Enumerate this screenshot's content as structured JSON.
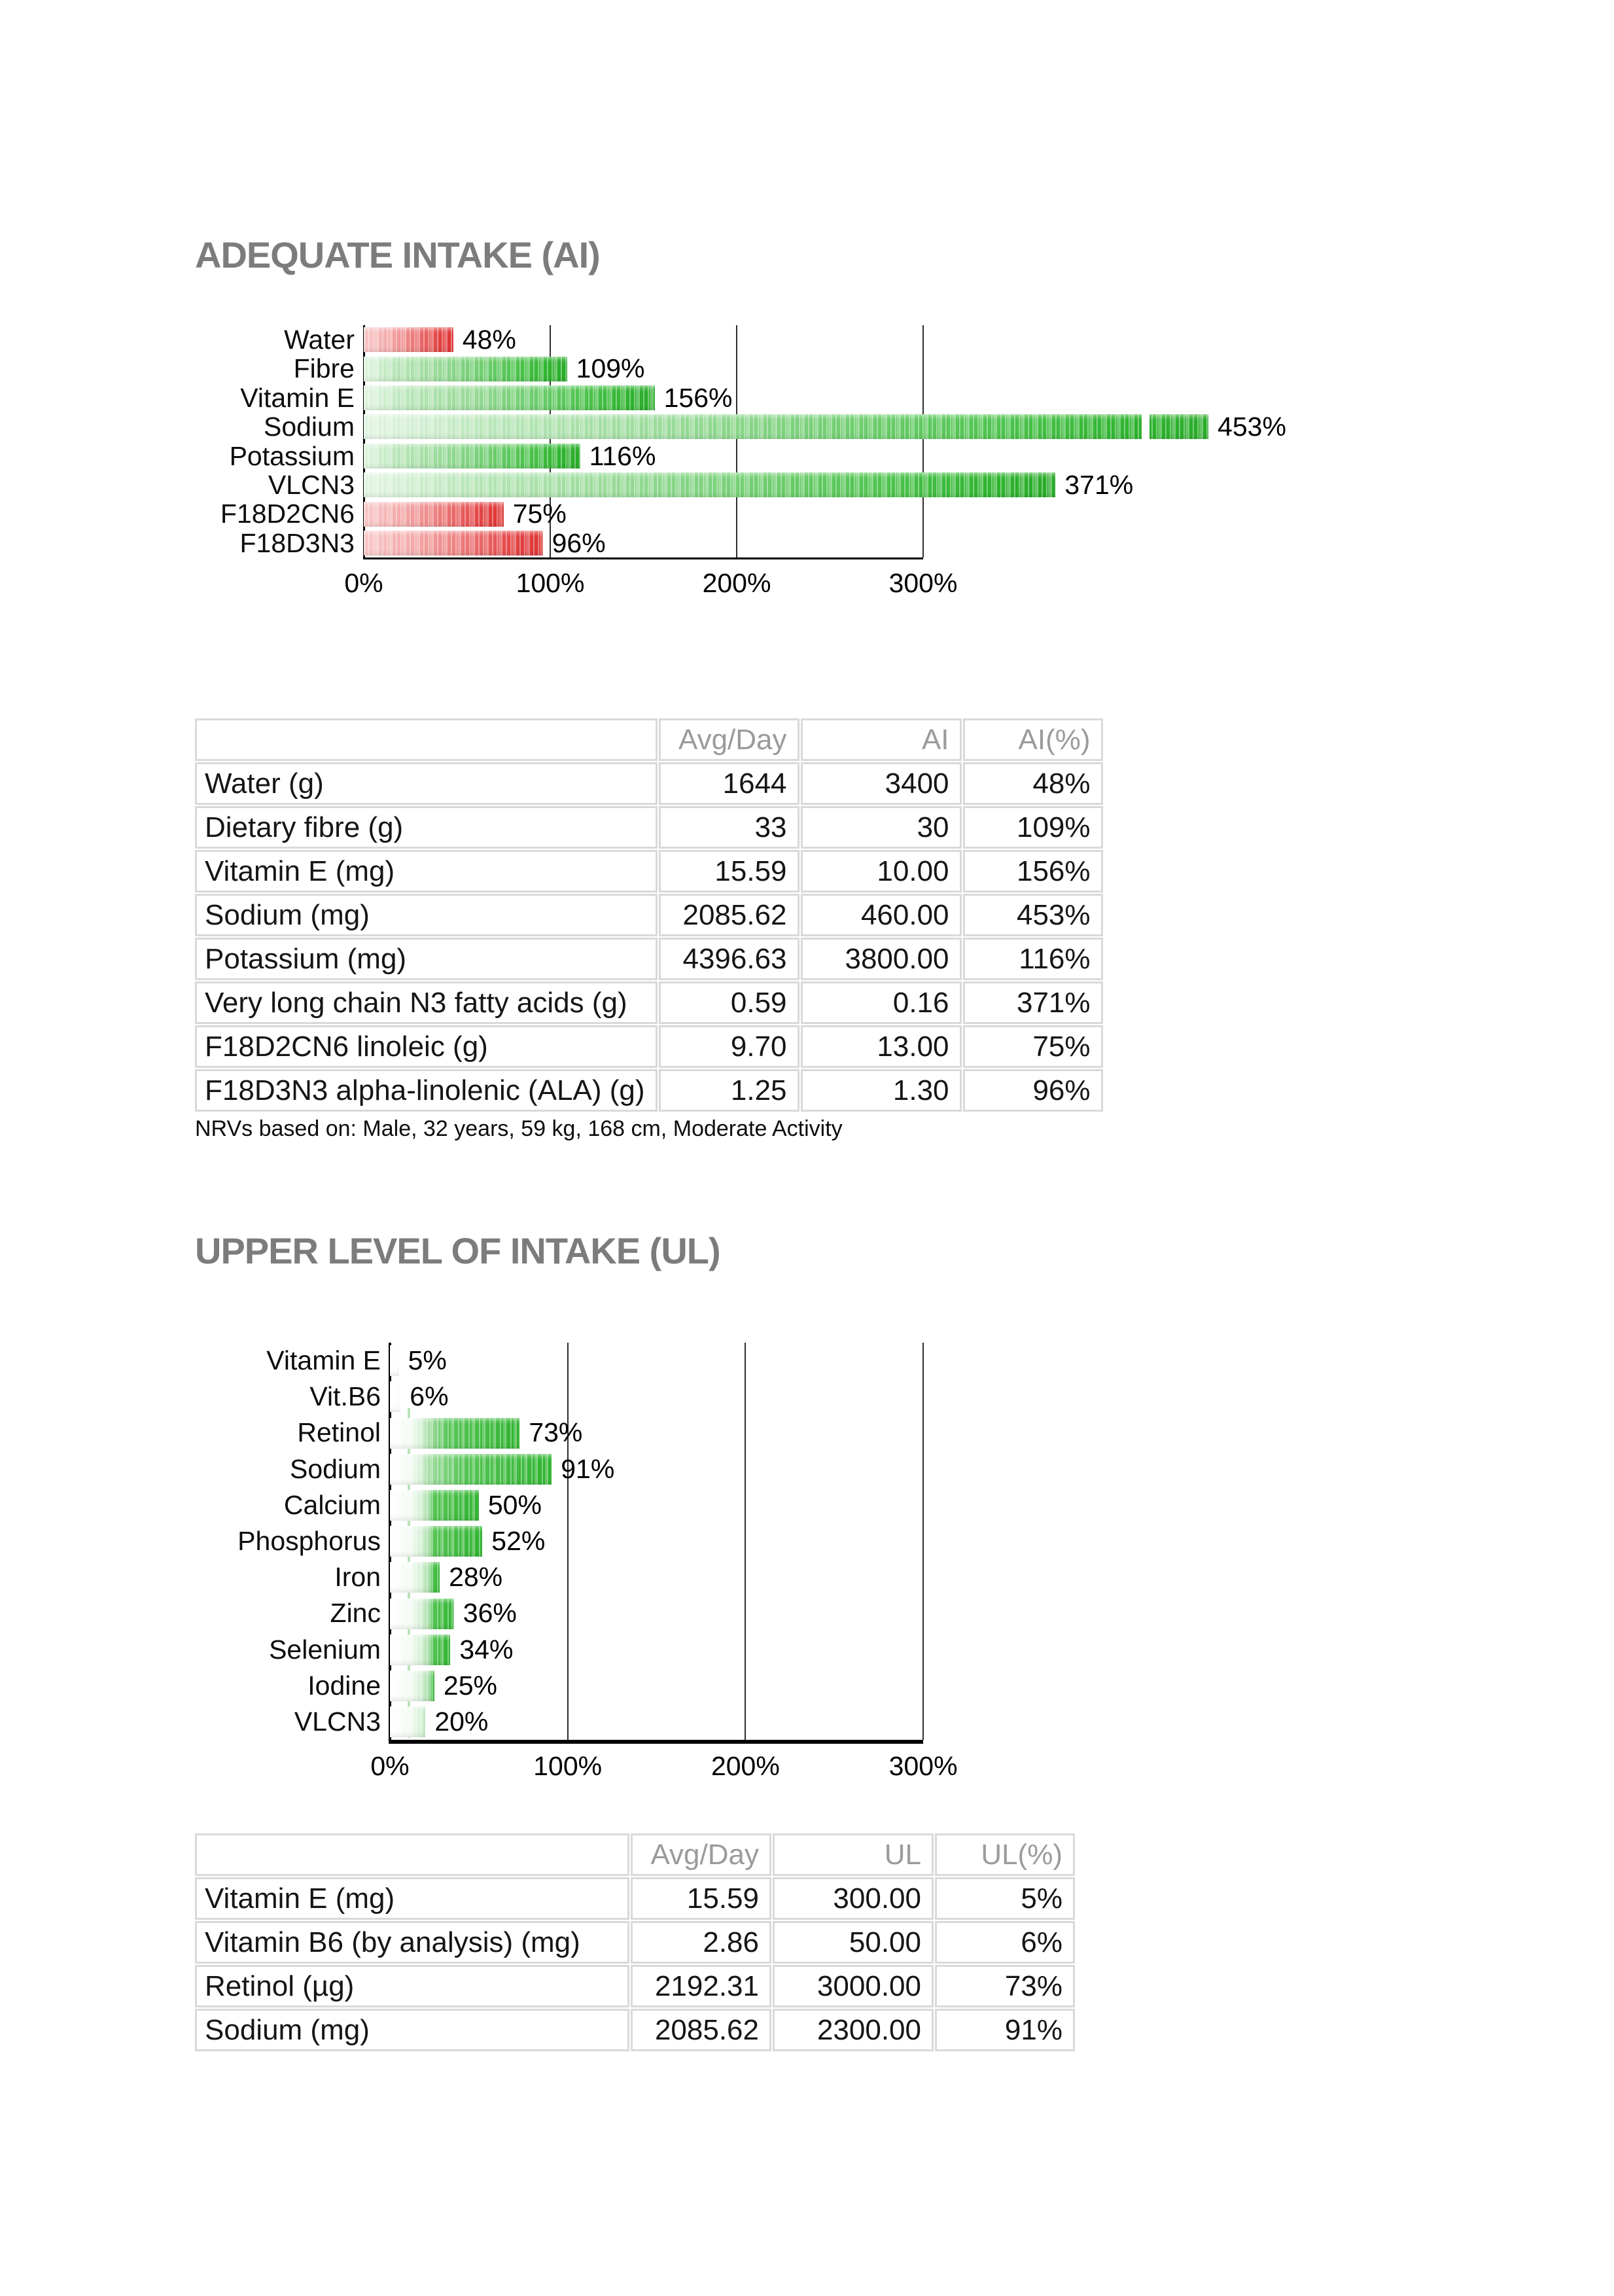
{
  "colors": {
    "title_gray": "#7c7c7c",
    "table_header_gray": "#9b9b9b",
    "table_border_gray": "#d9d9d9",
    "bar_green_dark": "#29ab29",
    "bar_green_light": "#e3f5e3",
    "bar_red_dark": "#de3232",
    "bar_red_light": "#f9c9c9",
    "axis_black": "#000000",
    "artifact_green": "#b7e3b7"
  },
  "sections": [
    {
      "title": "ADEQUATE INTAKE (AI)",
      "note": "NRVs based on: Male, 32 years, 59 kg, 168 cm, Moderate Activity",
      "table": {
        "headers": [
          "",
          "Avg/Day",
          "AI",
          "AI(%)"
        ],
        "rows": [
          [
            "Water (g)",
            "1644",
            "3400",
            "48%"
          ],
          [
            "Dietary fibre (g)",
            "33",
            "30",
            "109%"
          ],
          [
            "Vitamin E (mg)",
            "15.59",
            "10.00",
            "156%"
          ],
          [
            "Sodium (mg)",
            "2085.62",
            "460.00",
            "453%"
          ],
          [
            "Potassium (mg)",
            "4396.63",
            "3800.00",
            "116%"
          ],
          [
            "Very long chain N3 fatty acids (g)",
            "0.59",
            "0.16",
            "371%"
          ],
          [
            "F18D2CN6 linoleic (g)",
            "9.70",
            "13.00",
            "75%"
          ],
          [
            "F18D3N3 alpha-linolenic (ALA) (g)",
            "1.25",
            "1.30",
            "96%"
          ]
        ]
      }
    },
    {
      "title": "UPPER LEVEL OF INTAKE (UL)",
      "note": "",
      "table": {
        "headers": [
          "",
          "Avg/Day",
          "UL",
          "UL(%)"
        ],
        "rows": [
          [
            "Vitamin E (mg)",
            "15.59",
            "300.00",
            "5%"
          ],
          [
            "Vitamin B6 (by analysis) (mg)",
            "2.86",
            "50.00",
            "6%"
          ],
          [
            "Retinol (µg)",
            "2192.31",
            "3000.00",
            "73%"
          ],
          [
            "Sodium (mg)",
            "2085.62",
            "2300.00",
            "91%"
          ]
        ]
      }
    }
  ],
  "chart_data": [
    {
      "type": "bar",
      "orientation": "horizontal",
      "title": "Adequate Intake (AI) — intake as % of NRV",
      "categories": [
        "Water",
        "Fibre",
        "Vitamin E",
        "Sodium",
        "Potassium",
        "VLCN3",
        "F18D2CN6",
        "F18D3N3"
      ],
      "values": [
        48,
        109,
        156,
        453,
        116,
        371,
        75,
        96
      ],
      "value_labels": [
        "48%",
        "109%",
        "156%",
        "453%",
        "116%",
        "371%",
        "75%",
        "96%"
      ],
      "bar_colors": [
        "red",
        "green",
        "green",
        "green",
        "green",
        "green",
        "red",
        "red"
      ],
      "break_marker": [
        false,
        false,
        false,
        true,
        false,
        false,
        false,
        false
      ],
      "x_ticks": [
        "0%",
        "100%",
        "200%",
        "300%"
      ],
      "xlim": [
        0,
        300
      ],
      "grid": true,
      "legend": "none"
    },
    {
      "type": "bar",
      "orientation": "horizontal",
      "title": "Upper Level of Intake (UL) — intake as % of UL",
      "categories": [
        "Vitamin E",
        "Vit.B6",
        "Retinol",
        "Sodium",
        "Calcium",
        "Phosphorus",
        "Iron",
        "Zinc",
        "Selenium",
        "Iodine",
        "VLCN3"
      ],
      "values": [
        5,
        6,
        73,
        91,
        50,
        52,
        28,
        36,
        34,
        25,
        20
      ],
      "value_labels": [
        "5%",
        "6%",
        "73%",
        "91%",
        "50%",
        "52%",
        "28%",
        "36%",
        "34%",
        "25%",
        "20%"
      ],
      "bar_colors": [
        "ul",
        "ul",
        "ul",
        "ul",
        "ul",
        "ul",
        "ul",
        "ul",
        "ul",
        "ul",
        "ul"
      ],
      "break_marker": [
        false,
        false,
        false,
        false,
        false,
        false,
        false,
        false,
        false,
        false,
        false
      ],
      "x_ticks": [
        "0%",
        "100%",
        "200%",
        "300%"
      ],
      "xlim": [
        0,
        300
      ],
      "grid": true,
      "legend": "none"
    }
  ]
}
